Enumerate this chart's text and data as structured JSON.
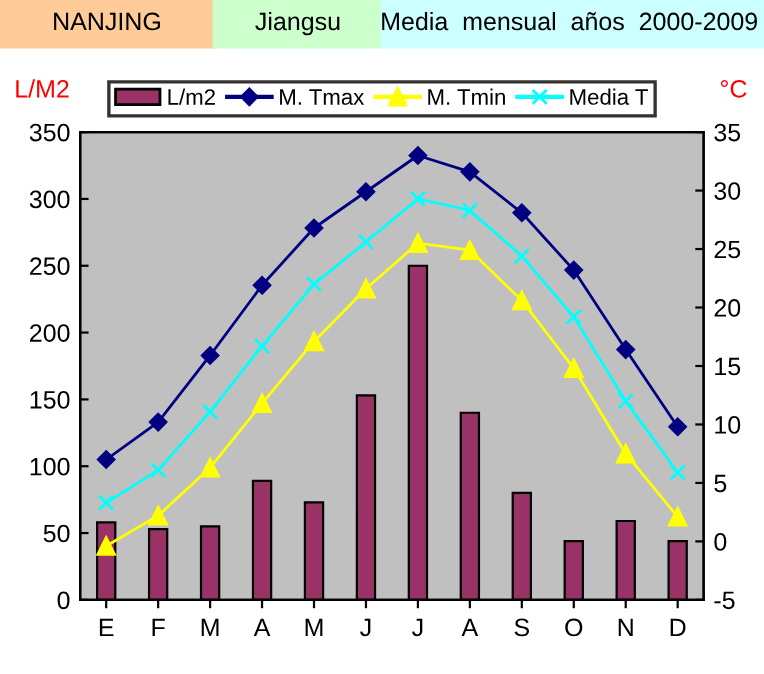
{
  "chart_data": {
    "type": "bar",
    "title": "NANJING",
    "subtitle": "Jiangsu",
    "annotations": [
      "Media  mensual  años  2000-2009"
    ],
    "ylabel": "L/M2",
    "y2label": "°C",
    "categories": [
      "E",
      "F",
      "M",
      "A",
      "M",
      "J",
      "J",
      "A",
      "S",
      "O",
      "N",
      "D"
    ],
    "series": [
      {
        "name": "L/m2",
        "color": "#993366",
        "values": [
          58,
          53,
          55,
          89,
          73,
          153,
          250,
          140,
          80,
          44,
          59,
          44
        ]
      },
      {
        "name": "M. Tmax",
        "type": "line",
        "axis": "y2",
        "color": "#000080",
        "marker": "diamond",
        "values": [
          7.0,
          10.2,
          15.9,
          21.9,
          26.8,
          29.9,
          33.0,
          31.6,
          28.1,
          23.2,
          16.4,
          9.8
        ]
      },
      {
        "name": "M. Tmin",
        "type": "line",
        "axis": "y2",
        "color": "#ffff00",
        "marker": "triangle",
        "values": [
          -0.4,
          2.2,
          6.3,
          11.8,
          17.1,
          21.6,
          25.5,
          24.9,
          20.6,
          14.8,
          7.5,
          2.1
        ]
      },
      {
        "name": "Media T",
        "type": "line",
        "axis": "y2",
        "color": "#00ffff",
        "marker": "cross",
        "values": [
          3.3,
          6.1,
          11.1,
          16.7,
          22.0,
          25.6,
          29.3,
          28.3,
          24.4,
          19.2,
          12.0,
          5.9
        ]
      }
    ],
    "ylim": [
      0,
      350
    ],
    "yticks": [
      0,
      50,
      100,
      150,
      200,
      250,
      300,
      350
    ],
    "y2lim": [
      -5,
      35
    ],
    "y2ticks": [
      -5,
      0,
      5,
      10,
      15,
      20,
      25,
      30,
      35
    ],
    "grid": false,
    "legend": "top"
  }
}
